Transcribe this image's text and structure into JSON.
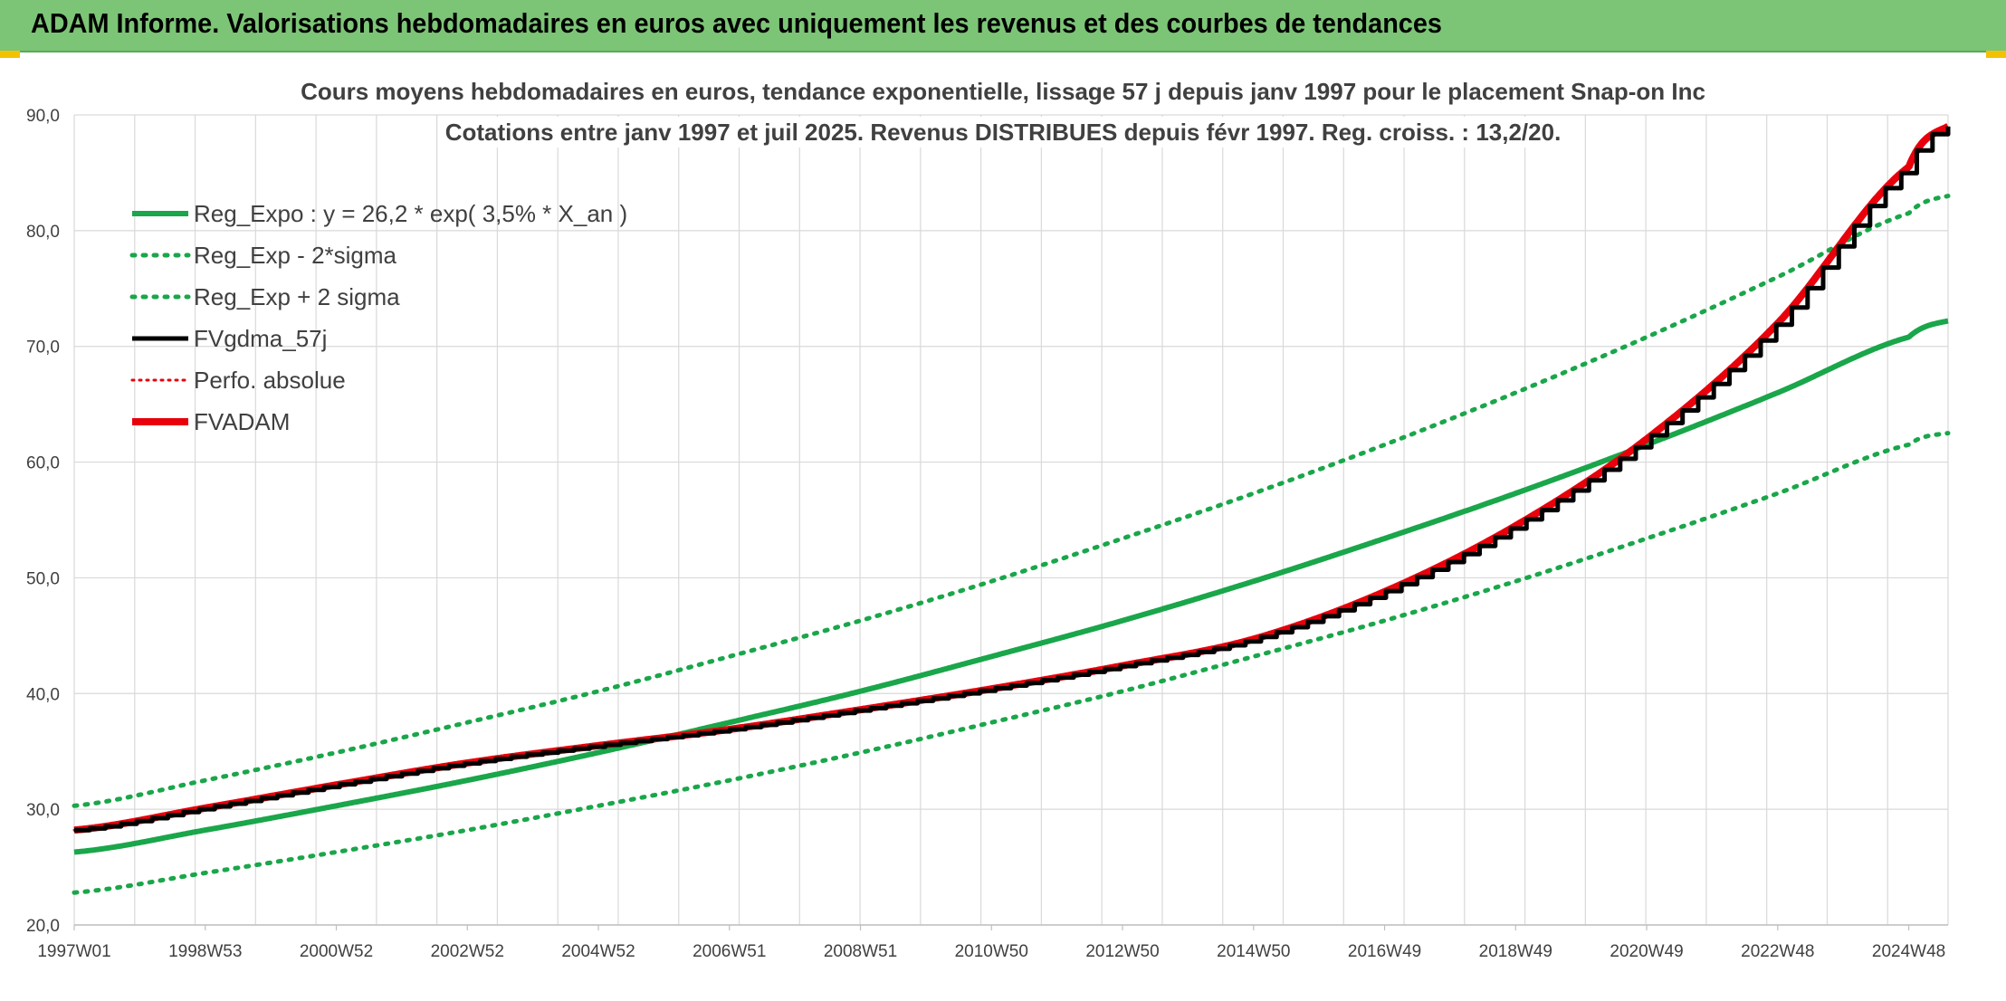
{
  "header": {
    "title": "ADAM Informe. Valorisations hebdomadaires en euros avec uniquement les revenus et des courbes de tendances"
  },
  "colors": {
    "header_bg": "#7cc576",
    "trend": "#1aa64a",
    "red": "#e8000b",
    "black": "#000000",
    "grid": "#d9d9d9",
    "text": "#404040"
  },
  "chart_data": {
    "type": "line",
    "title": [
      "Cours moyens hebdomadaires en euros, tendance exponentielle, lissage 57 j depuis janv 1997 pour le placement Snap-on Inc",
      "Cotations entre janv 1997 et juil 2025. Revenus DISTRIBUES depuis févr 1997. Reg. croiss. : 13,2/20."
    ],
    "xlabel": "",
    "ylabel": "",
    "ylim": [
      20,
      90
    ],
    "yticks": [
      "20,0",
      "30,0",
      "40,0",
      "50,0",
      "60,0",
      "70,0",
      "80,0",
      "90,0"
    ],
    "xticks": [
      "1997W01",
      "1998W53",
      "2000W52",
      "2002W52",
      "2004W52",
      "2006W51",
      "2008W51",
      "2010W50",
      "2012W50",
      "2014W50",
      "2016W49",
      "2018W49",
      "2020W49",
      "2022W48",
      "2024W48"
    ],
    "x_years": [
      1997.0,
      1999.0,
      2001.0,
      2003.0,
      2005.0,
      2007.0,
      2009.0,
      2011.0,
      2013.0,
      2015.0,
      2017.0,
      2019.0,
      2021.0,
      2023.0,
      2025.0,
      2025.6
    ],
    "grid": true,
    "legend_position": "top-left",
    "series": [
      {
        "name": "Reg_Expo : y = 26,2 * exp( 3,5% *  X_an )",
        "style": "solid-green",
        "values": [
          26.3,
          28.2,
          30.3,
          32.5,
          34.9,
          37.5,
          40.2,
          43.2,
          46.3,
          49.7,
          53.4,
          57.3,
          61.5,
          66.0,
          70.8,
          72.2
        ]
      },
      {
        "name": "Reg_Exp - 2*sigma",
        "style": "dotted-green",
        "values": [
          22.8,
          24.5,
          26.3,
          28.2,
          30.3,
          32.5,
          34.9,
          37.5,
          40.2,
          43.2,
          46.3,
          49.7,
          53.4,
          57.3,
          61.5,
          62.5
        ]
      },
      {
        "name": "Reg_Exp + 2 sigma",
        "style": "dotted-green",
        "values": [
          30.3,
          32.5,
          34.9,
          37.5,
          40.2,
          43.2,
          46.3,
          49.7,
          53.4,
          57.3,
          61.5,
          66.0,
          70.8,
          76.0,
          81.5,
          83.0
        ]
      },
      {
        "name": "FVgdma_57j",
        "style": "solid-black",
        "values": [
          28.2,
          30.1,
          32.1,
          34.0,
          35.5,
          36.9,
          38.6,
          40.4,
          42.4,
          44.7,
          48.8,
          54.5,
          62.0,
          72.0,
          85.5,
          89.0
        ]
      },
      {
        "name": "Perfo. absolue",
        "style": "dotted-red",
        "values": [
          28.2,
          30.1,
          32.1,
          34.0,
          35.5,
          36.9,
          38.6,
          40.4,
          42.4,
          44.7,
          48.8,
          54.5,
          62.0,
          72.0,
          85.5,
          89.0
        ]
      },
      {
        "name": "FVADAM",
        "style": "solid-red",
        "values": [
          28.2,
          30.1,
          32.1,
          34.0,
          35.5,
          36.9,
          38.6,
          40.4,
          42.4,
          44.7,
          48.8,
          54.5,
          62.0,
          72.0,
          85.5,
          89.0
        ]
      }
    ]
  }
}
